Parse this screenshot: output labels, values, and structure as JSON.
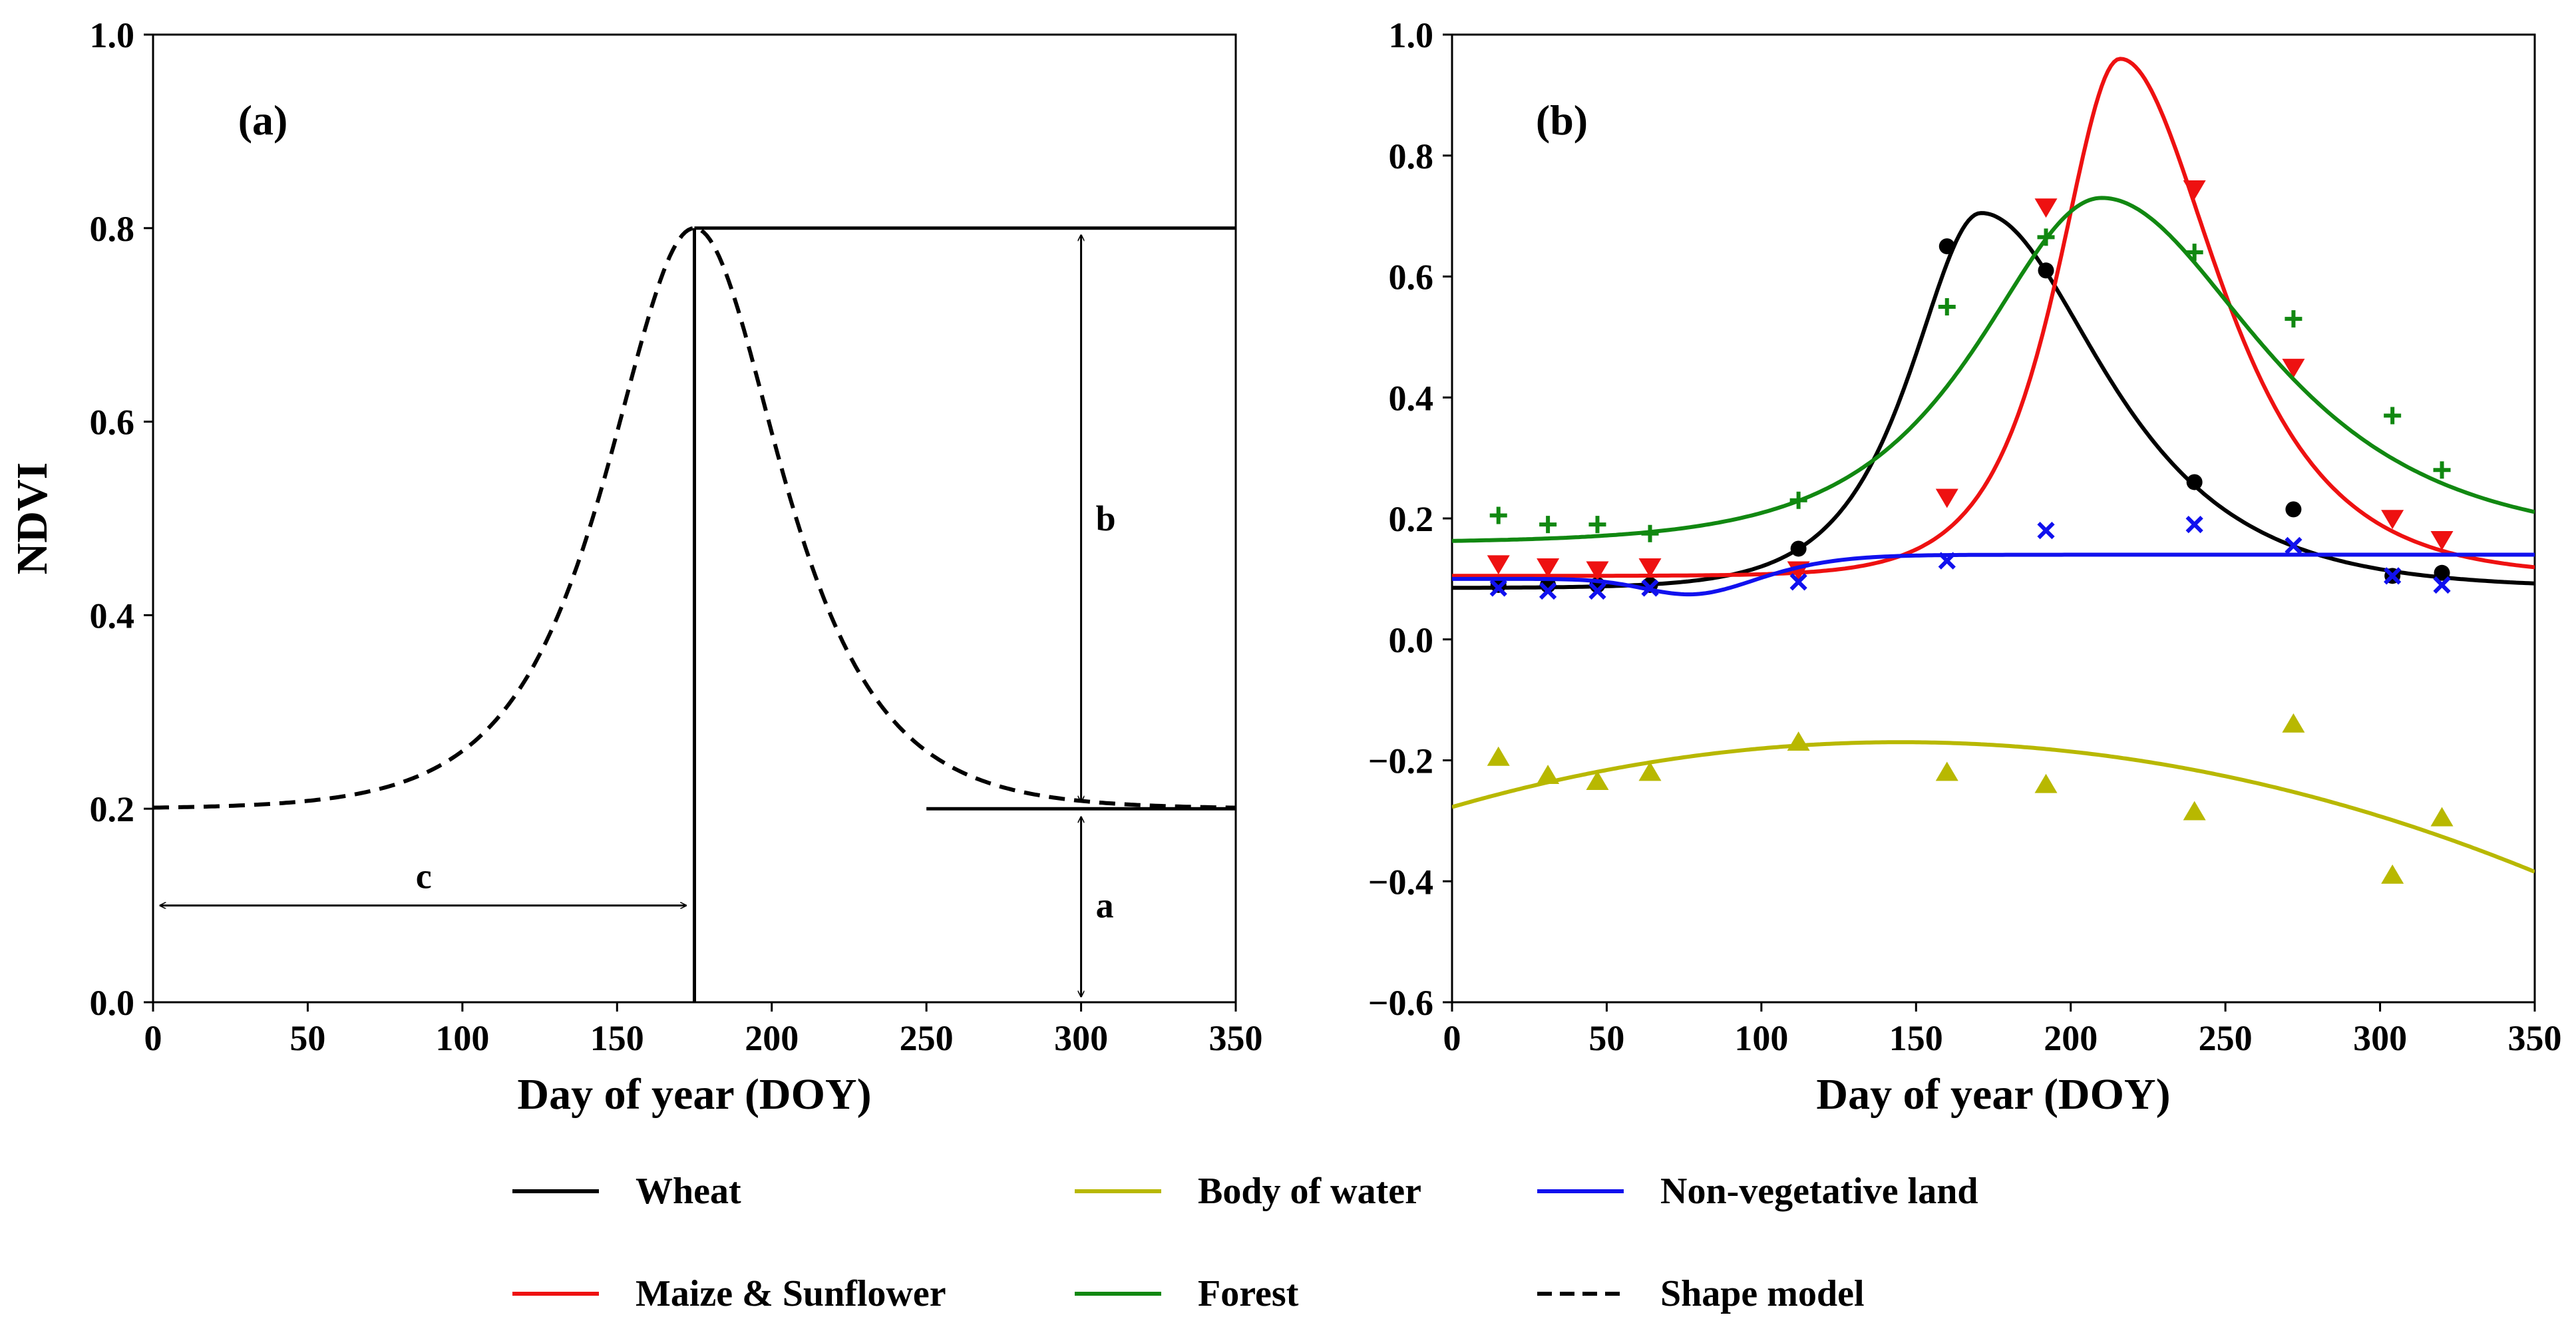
{
  "chart_data": [
    {
      "type": "line",
      "panel_label": "(a)",
      "xlabel": "Day of year (DOY)",
      "ylabel": "NDVI",
      "xlim": [
        0,
        350
      ],
      "ylim": [
        0,
        1.0
      ],
      "x_ticks": [
        "0",
        "50",
        "100",
        "150",
        "200",
        "250",
        "300",
        "350"
      ],
      "y_ticks": [
        "0.0",
        "0.2",
        "0.4",
        "0.6",
        "0.8",
        "1.0"
      ],
      "shape_model": {
        "a": 0.2,
        "b": 0.6,
        "c": 175,
        "width": 25
      },
      "guide_lines": {
        "vertical_x": 175,
        "top_y": 0.8,
        "top_from": 175,
        "top_to": 350,
        "base_y": 0.2,
        "base_from": 250,
        "base_to": 350
      },
      "annotations": {
        "a": {
          "label": "a",
          "x": 300,
          "from": 0.0,
          "to": 0.2
        },
        "b": {
          "label": "b",
          "x": 300,
          "from": 0.2,
          "to": 0.8
        },
        "c": {
          "label": "c",
          "y": 0.1,
          "from": 0,
          "to": 175
        }
      }
    },
    {
      "type": "scatter",
      "panel_label": "(b)",
      "xlabel": "Day of year (DOY)",
      "ylabel": "",
      "xlim": [
        0,
        350
      ],
      "ylim": [
        -0.6,
        1.0
      ],
      "x_ticks": [
        "0",
        "50",
        "100",
        "150",
        "200",
        "250",
        "300",
        "350"
      ],
      "y_ticks": [
        "−0.6",
        "−0.4",
        "−0.2",
        "0.0",
        "0.2",
        "0.4",
        "0.6",
        "0.8",
        "1.0"
      ],
      "x": [
        15,
        31,
        47,
        64,
        112,
        160,
        192,
        240,
        272,
        304,
        320
      ],
      "series": [
        {
          "name": "Wheat",
          "color": "#000000",
          "marker": "circle",
          "values": [
            0.09,
            0.09,
            0.09,
            0.09,
            0.15,
            0.65,
            0.61,
            0.26,
            0.215,
            0.105,
            0.11
          ],
          "fit": {
            "base": 0.085,
            "amp": 0.62,
            "peak": 171,
            "w_left": 20,
            "w_right": 35
          }
        },
        {
          "name": "Maize & Sunflower",
          "color": "#ee1111",
          "marker": "triangle-down",
          "values": [
            0.125,
            0.12,
            0.115,
            0.12,
            0.115,
            0.235,
            0.715,
            0.745,
            0.45,
            0.2,
            0.165
          ],
          "fit": {
            "base": 0.105,
            "amp": 0.855,
            "peak": 216,
            "w_left": 18,
            "w_right": 28
          }
        },
        {
          "name": "Forest",
          "color": "#118811",
          "marker": "plus",
          "values": [
            0.205,
            0.19,
            0.19,
            0.175,
            0.23,
            0.55,
            0.665,
            0.64,
            0.53,
            0.37,
            0.28
          ],
          "fit": {
            "base": 0.16,
            "amp": 0.57,
            "peak": 210,
            "w_left": 35,
            "w_right": 45
          }
        },
        {
          "name": "Body of water",
          "color": "#b8b800",
          "marker": "triangle-up",
          "values": [
            -0.195,
            -0.225,
            -0.235,
            -0.22,
            -0.17,
            -0.22,
            -0.24,
            -0.285,
            -0.14,
            -0.39,
            -0.295
          ],
          "fit": {
            "quad": {
              "vertex_x": 145,
              "vertex_y": -0.17,
              "k": 5.1e-06
            }
          }
        },
        {
          "name": "Non-vegetative land",
          "color": "#1111ee",
          "marker": "x",
          "values": [
            0.085,
            0.08,
            0.08,
            0.085,
            0.095,
            0.13,
            0.18,
            0.19,
            0.155,
            0.105,
            0.09
          ],
          "fit": {
            "base": 0.1,
            "dip": 0.028,
            "dip_center": 78,
            "dip_w": 22,
            "rise": 0.04,
            "rise_center": 110,
            "rise_w": 12
          }
        }
      ]
    }
  ],
  "legend": [
    {
      "label": "Wheat",
      "color": "#000000",
      "dash": false
    },
    {
      "label": "Body of water",
      "color": "#b8b800",
      "dash": false
    },
    {
      "label": "Non-vegetative land",
      "color": "#1111ee",
      "dash": false
    },
    {
      "label": "Maize & Sunflower",
      "color": "#ee1111",
      "dash": false
    },
    {
      "label": "Forest",
      "color": "#118811",
      "dash": false
    },
    {
      "label": "Shape model",
      "color": "#000000",
      "dash": true
    }
  ]
}
